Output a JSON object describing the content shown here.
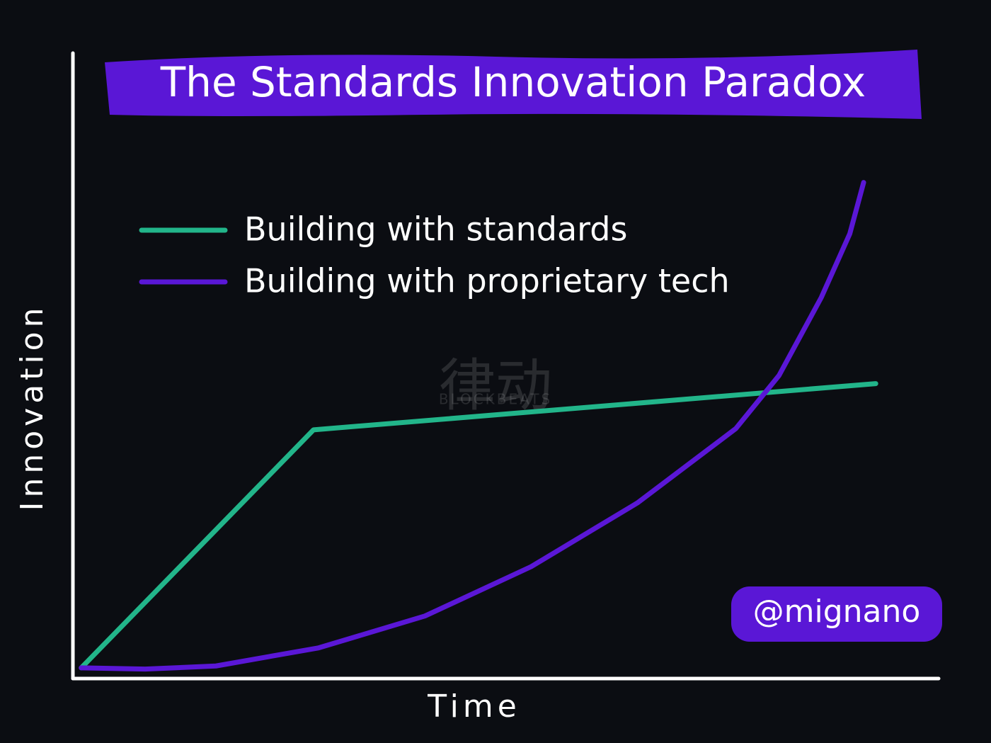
{
  "chart_data": {
    "type": "line",
    "title": "The Standards Innovation Paradox",
    "x_label": "Time",
    "y_label": "Innovation",
    "credit": "@mignano",
    "watermark": [
      "律动",
      "BLOCKBEATS"
    ],
    "xlim": [
      0,
      100
    ],
    "ylim": [
      0,
      100
    ],
    "legend": "top-left",
    "series": [
      {
        "name": "Building with standards",
        "color": "#22b58a",
        "x": [
          0.8,
          27.7,
          92.8
        ],
        "values": [
          1.6,
          39.7,
          47.1
        ]
      },
      {
        "name": "Building with proprietary tech",
        "color": "#5a17d6",
        "x": [
          0.8,
          8.2,
          16.4,
          28.3,
          40.6,
          52.9,
          65.2,
          76.6,
          81.6,
          86.5,
          89.8,
          91.4
        ],
        "values": [
          1.6,
          1.4,
          1.9,
          4.8,
          9.9,
          17.8,
          28.0,
          39.9,
          48.4,
          60.9,
          71.1,
          79.3
        ]
      }
    ]
  }
}
